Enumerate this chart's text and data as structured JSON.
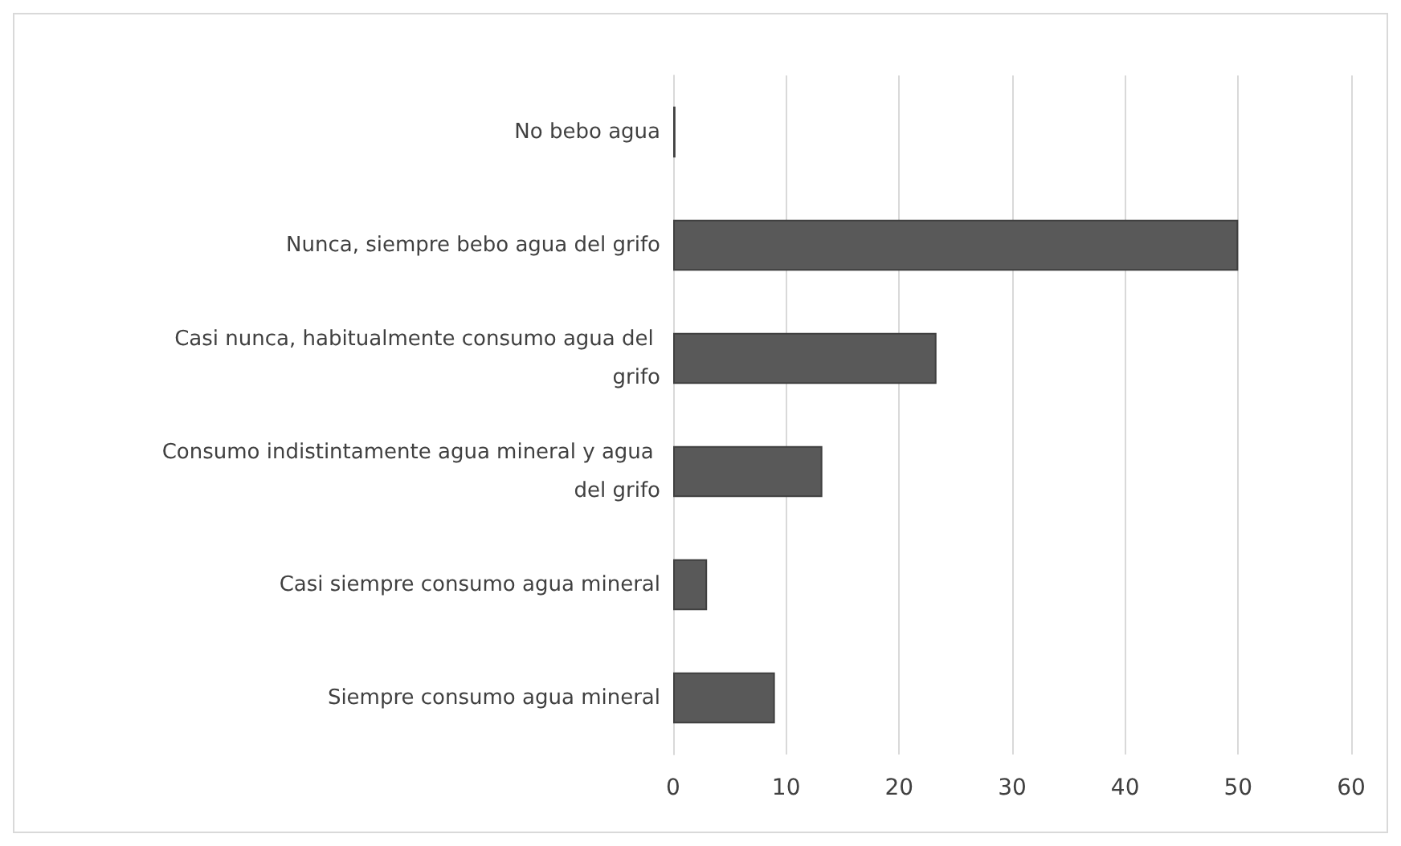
{
  "chart_data": {
    "type": "bar",
    "orientation": "horizontal",
    "categories": [
      "No bebo agua",
      "Nunca, siempre bebo agua del grifo",
      "Casi nunca, habitualmente consumo agua del grifo",
      "Consumo indistintamente agua mineral y agua del grifo",
      "Casi siempre consumo agua mineral",
      "Siempre consumo agua mineral"
    ],
    "values": [
      0.2,
      50,
      23.3,
      13.2,
      3,
      9
    ],
    "color": "#595959",
    "xlim": [
      0,
      60
    ],
    "xticks": [
      0,
      10,
      20,
      30,
      40,
      50,
      60
    ],
    "grid": "x"
  }
}
